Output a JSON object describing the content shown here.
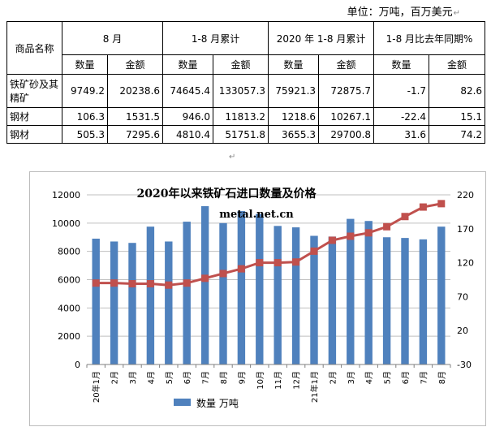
{
  "unit_label": "单位：万吨，百万美元",
  "table": {
    "header_name": "商品名称",
    "period_labels": [
      "8 月",
      "1-8 月累计",
      "2020 年 1-8 月累计",
      "1-8 月比去年同期%"
    ],
    "sub_labels": [
      "数量",
      "金额",
      "数量",
      "金额",
      "数量",
      "金额",
      "数量",
      "金额"
    ],
    "rows": [
      {
        "name": "铁矿砂及其精矿",
        "values": [
          "9749.2",
          "20238.6",
          "74645.4",
          "133057.3",
          "75921.3",
          "72875.7",
          "-1.7",
          "82.6"
        ]
      },
      {
        "name": "钢材",
        "values": [
          "106.3",
          "1531.5",
          "946.0",
          "11813.2",
          "1218.6",
          "10267.1",
          "-22.4",
          "15.1"
        ]
      },
      {
        "name": "钢材",
        "values": [
          "505.3",
          "7295.6",
          "4810.4",
          "51751.8",
          "3655.3",
          "29700.8",
          "31.6",
          "74.2"
        ]
      }
    ]
  },
  "chart_data": {
    "type": "bar",
    "title": "2020年以来铁矿石进口数量及价格",
    "subtitle": "metal.net.cn",
    "categories": [
      "20年1月",
      "2月",
      "3月",
      "4月",
      "5月",
      "6月",
      "7月",
      "8月",
      "9月",
      "10月",
      "11月",
      "12月",
      "21年1月",
      "2月",
      "3月",
      "4月",
      "5月",
      "6月",
      "7月",
      "8月"
    ],
    "series": [
      {
        "name": "数量  万吨",
        "axis": "left",
        "kind": "bar",
        "color": "#4f81bd",
        "values": [
          8900,
          8700,
          8600,
          9750,
          8700,
          10100,
          11200,
          10000,
          10850,
          10650,
          9800,
          9700,
          9100,
          9050,
          10300,
          10150,
          9000,
          8950,
          8850,
          9750
        ]
      },
      {
        "axis": "right",
        "kind": "line",
        "color": "#c0504d",
        "values": [
          90,
          90,
          89,
          89,
          87,
          90,
          97,
          104,
          111,
          120,
          120,
          121,
          137,
          153,
          159,
          164,
          173,
          188,
          202,
          207
        ]
      }
    ],
    "y_left": {
      "min": 0,
      "max": 12000,
      "ticks": [
        0,
        2000,
        4000,
        6000,
        8000,
        10000,
        12000
      ]
    },
    "y_right": {
      "min": -30,
      "max": 220,
      "ticks": [
        -30,
        20,
        70,
        120,
        170,
        220
      ]
    },
    "legend_position": "bottom-left"
  }
}
